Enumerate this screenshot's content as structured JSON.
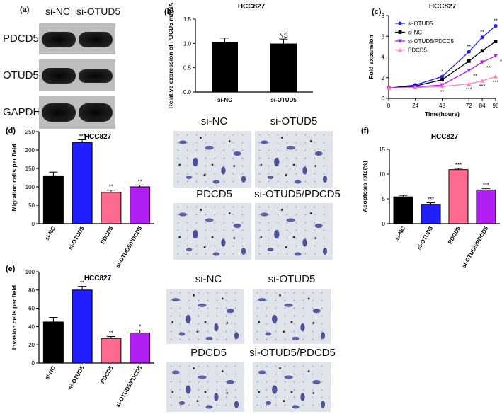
{
  "panel_labels": {
    "a": "(a)",
    "b": "(b)",
    "c": "(c)",
    "d": "(d)",
    "e": "(e)",
    "f": "(f)"
  },
  "western_blot": {
    "columns": [
      "si-NC",
      "si-OTUD5"
    ],
    "rows": [
      "PDCD5",
      "OTUD5",
      "GAPDH"
    ]
  },
  "migration_images": {
    "labels": [
      "si-NC",
      "si-OTUD5",
      "PDCD5",
      "si-OTUD5/PDCD5"
    ]
  },
  "invasion_images": {
    "labels": [
      "si-NC",
      "si-OTUD5",
      "PDCD5",
      "si-OTUD5/PDCD5"
    ]
  },
  "colors": {
    "black": "#000000",
    "blue": "#1f1fff",
    "pink": "#ff6b8f",
    "purple": "#b21ff2",
    "lightpink": "#ff84b4"
  },
  "chart_data": [
    {
      "id": "b",
      "type": "bar",
      "title": "HCC827",
      "ylabel": "Relative expression of PDCD5 mRNA",
      "categories": [
        "si-NC",
        "si-OTUD5"
      ],
      "values": [
        1.02,
        0.99
      ],
      "errors": [
        0.09,
        0.1
      ],
      "annotations": [
        "",
        "NS"
      ],
      "colors": [
        "#000000",
        "#000000"
      ],
      "ylim": [
        0,
        1.5
      ],
      "yticks": [
        "0.0",
        "0.5",
        "1.0",
        "1.5"
      ]
    },
    {
      "id": "c",
      "type": "line",
      "title": "HCC827",
      "xlabel": "Time(hours)",
      "ylabel": "Fold expansion",
      "x": [
        0,
        24,
        48,
        72,
        84,
        96
      ],
      "xticks": [
        "0",
        "24",
        "48",
        "72",
        "84",
        "96"
      ],
      "ylim": [
        0,
        8
      ],
      "yticks": [
        "0",
        "2",
        "4",
        "6",
        "8"
      ],
      "legend": "top-left",
      "series": [
        {
          "name": "si-OTUD5",
          "color": "#1f1fff",
          "marker": "circle",
          "values": [
            1.0,
            1.3,
            2.1,
            4.5,
            5.9,
            7.0
          ],
          "annotations": [
            "",
            "",
            "*",
            "**",
            "**",
            "**"
          ]
        },
        {
          "name": "si-NC",
          "color": "#000000",
          "marker": "square",
          "values": [
            1.0,
            1.2,
            1.8,
            3.6,
            4.6,
            5.5
          ],
          "annotations": [
            "",
            "",
            "",
            "",
            "",
            ""
          ]
        },
        {
          "name": "si-OTUD5/PDCD5",
          "color": "#b21ff2",
          "marker": "triangle-down",
          "values": [
            1.0,
            1.1,
            1.3,
            2.7,
            3.5,
            4.1
          ],
          "annotations": [
            "",
            "",
            "",
            "**",
            "**",
            "**"
          ]
        },
        {
          "name": "PDCD5",
          "color": "#ff84b4",
          "marker": "triangle-up",
          "values": [
            1.0,
            1.05,
            1.15,
            1.4,
            1.7,
            2.1
          ],
          "annotations": [
            "",
            "",
            "**",
            "***",
            "***",
            "***"
          ]
        }
      ]
    },
    {
      "id": "d",
      "type": "bar",
      "title": "HCC827",
      "ylabel": "Migration cells per field",
      "categories": [
        "si-NC",
        "si-OTUD5",
        "PDCD5",
        "si-OTUD5/PDCD5"
      ],
      "values": [
        130,
        220,
        85,
        100
      ],
      "errors": [
        10,
        8,
        6,
        5
      ],
      "annotations": [
        "",
        "***",
        "**",
        "**"
      ],
      "colors": [
        "#000000",
        "#1f1fff",
        "#ff6b8f",
        "#b21ff2"
      ],
      "ylim": [
        0,
        250
      ],
      "yticks": [
        "0",
        "50",
        "100",
        "150",
        "200",
        "250"
      ]
    },
    {
      "id": "e",
      "type": "bar",
      "title": "HCC827",
      "ylabel": "Invasion cells per field",
      "categories": [
        "si-NC",
        "si-OTUD5",
        "PDCD5",
        "si-OTUD5/PDCD5"
      ],
      "values": [
        45,
        80,
        27,
        33
      ],
      "errors": [
        5,
        4,
        2,
        3
      ],
      "annotations": [
        "",
        "**",
        "**",
        "*"
      ],
      "colors": [
        "#000000",
        "#1f1fff",
        "#ff6b8f",
        "#b21ff2"
      ],
      "ylim": [
        0,
        100
      ],
      "yticks": [
        "0",
        "20",
        "40",
        "60",
        "80",
        "100"
      ]
    },
    {
      "id": "f",
      "type": "bar",
      "title": "HCC827",
      "ylabel": "Apoptosis rate(%)",
      "categories": [
        "si-NC",
        "si-OTUD5",
        "PDCD5",
        "si-OTUD5/PDCD5"
      ],
      "values": [
        5.4,
        3.9,
        10.9,
        6.8
      ],
      "errors": [
        0.3,
        0.3,
        0.25,
        0.3
      ],
      "annotations": [
        "",
        "***",
        "***",
        "***"
      ],
      "colors": [
        "#000000",
        "#1f1fff",
        "#ff6b8f",
        "#b21ff2"
      ],
      "ylim": [
        0,
        15
      ],
      "yticks": [
        "0",
        "5",
        "10",
        "15"
      ]
    }
  ]
}
